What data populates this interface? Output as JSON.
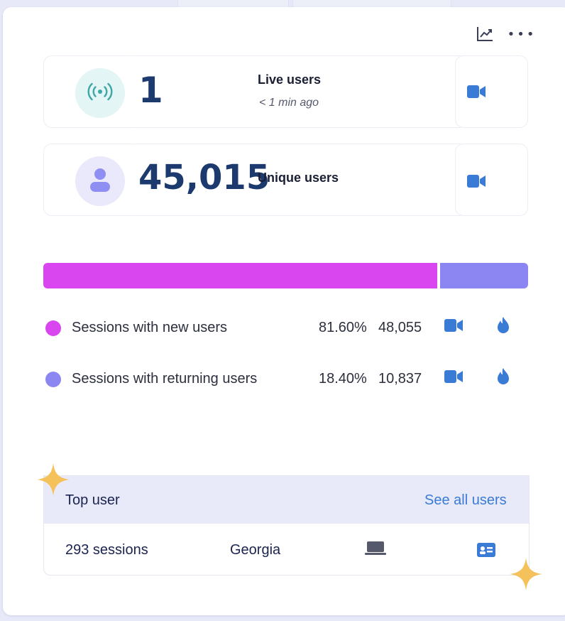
{
  "live": {
    "count": "1",
    "label": "Live users",
    "sub": "< 1 min ago"
  },
  "unique": {
    "count": "45,015",
    "label": "Unique users"
  },
  "sessions": [
    {
      "label": "Sessions with new users",
      "percent": "81.60%",
      "count": "48,055",
      "share": 81.6,
      "color": "#d946ef"
    },
    {
      "label": "Sessions with returning users",
      "percent": "18.40%",
      "count": "10,837",
      "share": 18.4,
      "color": "#8b86f2"
    }
  ],
  "top_user": {
    "title": "Top user",
    "link": "See all users",
    "sessions": "293 sessions",
    "country": "Georgia"
  },
  "colors": {
    "accent": "#3a7bd5",
    "number": "#1d3a6e",
    "live_bg": "#e4f5f5",
    "live_icon": "#3fa6a6",
    "user_bg": "#e9e9fb",
    "user_icon": "#8f8ef3",
    "sparkle": "#f5c15a"
  },
  "icons": [
    "trend-chart-icon",
    "more-options-icon",
    "live-signal-icon",
    "user-avatar-icon",
    "video-camera-icon",
    "flame-icon",
    "laptop-icon",
    "id-card-icon",
    "sparkle-icon"
  ]
}
